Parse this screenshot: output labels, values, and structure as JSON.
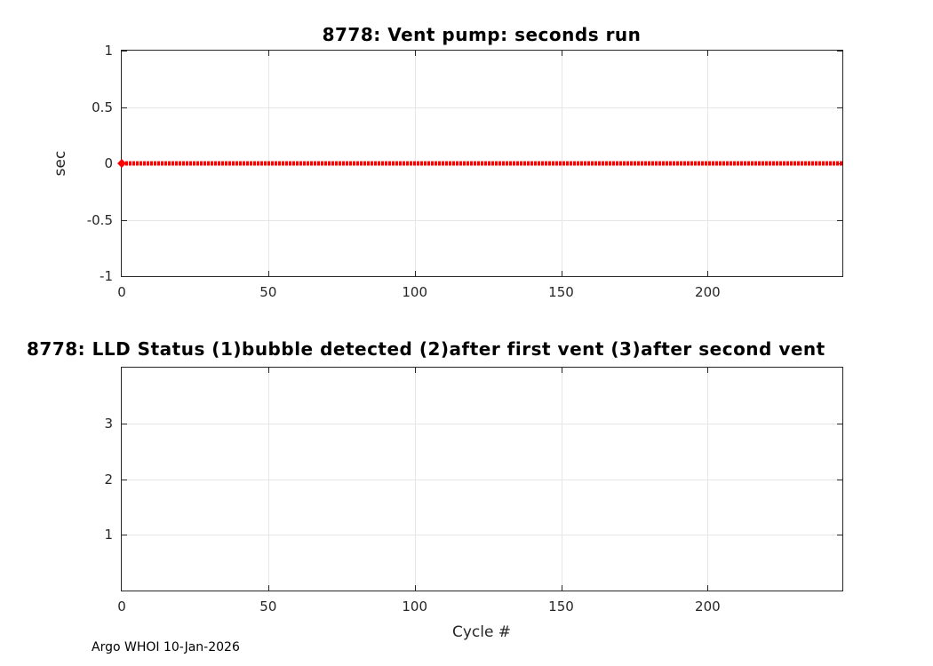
{
  "figure": {
    "background": "#ffffff",
    "footer": "Argo WHOI 10-Jan-2026",
    "text_color": "#262626",
    "grid_color": "#e6e6e6"
  },
  "chart_data": [
    {
      "type": "scatter",
      "title": "8778: Vent pump: seconds run",
      "xlabel": "",
      "ylabel": "sec",
      "xlim": [
        0,
        246
      ],
      "ylim": [
        -1,
        1
      ],
      "xticks": [
        0,
        50,
        100,
        150,
        200
      ],
      "yticks": [
        -1,
        -0.5,
        0,
        0.5,
        1
      ],
      "grid": true,
      "legend": null,
      "series": [
        {
          "name": "vent pump seconds run",
          "color": "#ff0000",
          "marker": "dense-dot-line",
          "x_min": 0,
          "x_max": 246,
          "y_constant": 0
        }
      ]
    },
    {
      "type": "scatter",
      "title": "8778: LLD Status   (1)bubble detected   (2)after first vent  (3)after second vent",
      "xlabel": "Cycle #",
      "ylabel": "",
      "xlim": [
        0,
        246
      ],
      "ylim": [
        0,
        4
      ],
      "xticks": [
        0,
        50,
        100,
        150,
        200
      ],
      "yticks": [
        1,
        2,
        3
      ],
      "grid": true,
      "legend": null,
      "series": []
    }
  ]
}
